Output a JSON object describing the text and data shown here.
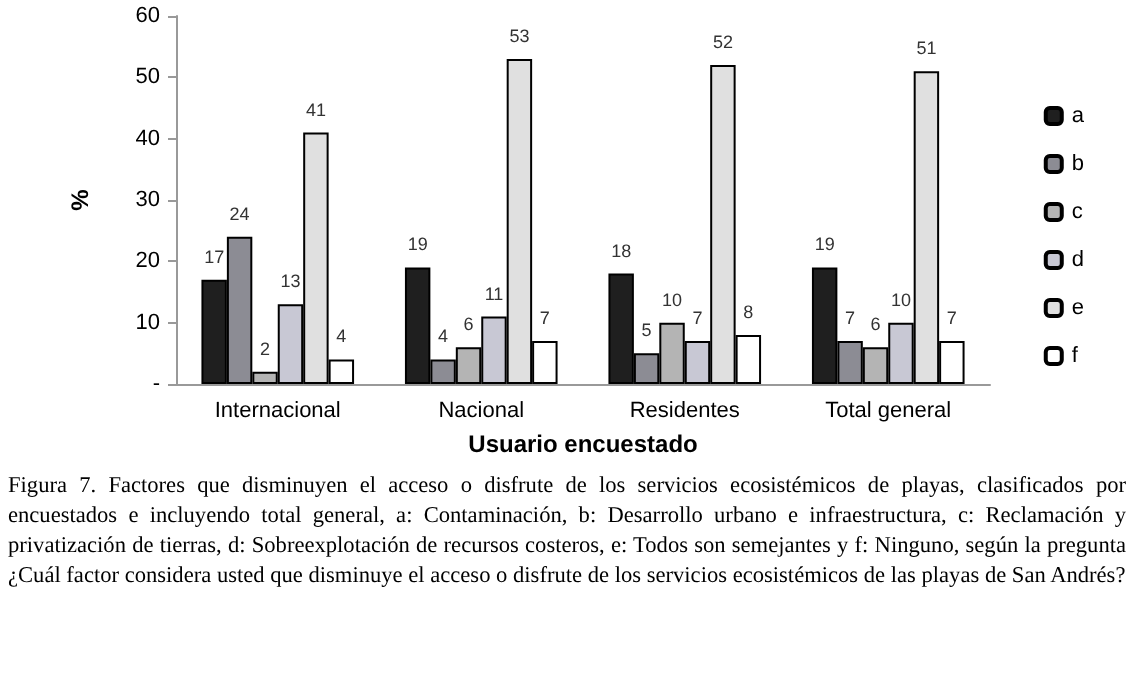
{
  "chart_data": {
    "type": "bar",
    "xlabel": "Usuario encuestado",
    "ylabel": "%",
    "categories": [
      "Internacional",
      "Nacional",
      "Residentes",
      "Total general"
    ],
    "series": [
      {
        "name": "a",
        "color": "#1f1f1f",
        "values": [
          17,
          19,
          18,
          19
        ]
      },
      {
        "name": "b",
        "color": "#8c8c94",
        "values": [
          24,
          4,
          5,
          7
        ]
      },
      {
        "name": "c",
        "color": "#b4b4b4",
        "values": [
          2,
          6,
          10,
          6
        ]
      },
      {
        "name": "d",
        "color": "#c8c8d4",
        "values": [
          13,
          11,
          7,
          10
        ]
      },
      {
        "name": "e",
        "color": "#e0e0e0",
        "values": [
          41,
          53,
          52,
          51
        ]
      },
      {
        "name": "f",
        "color": "#ffffff",
        "values": [
          4,
          7,
          8,
          7
        ]
      }
    ],
    "ylim": [
      0,
      60
    ],
    "yticks": [
      {
        "value": 0,
        "label": "-"
      },
      10,
      20,
      30,
      40,
      50,
      60
    ],
    "grid": false,
    "legend": "right",
    "data_labels": true,
    "annotations": [
      "Figura 7. Factores que disminuyen el acceso o disfrute de los servicios ecosistémicos de playas, clasificados por encuestados e incluyendo total general, a: Contaminación, b: Desarrollo urbano e infraestructura, c: Reclamación y privatización de tierras, d: Sobreexplotación de recursos costeros, e: Todos son semejantes y f: Ninguno, según la pregunta ¿Cuál factor considera usted que disminuye el acceso o disfrute de los servicios ecosistémicos de las playas de San Andrés?"
    ]
  }
}
